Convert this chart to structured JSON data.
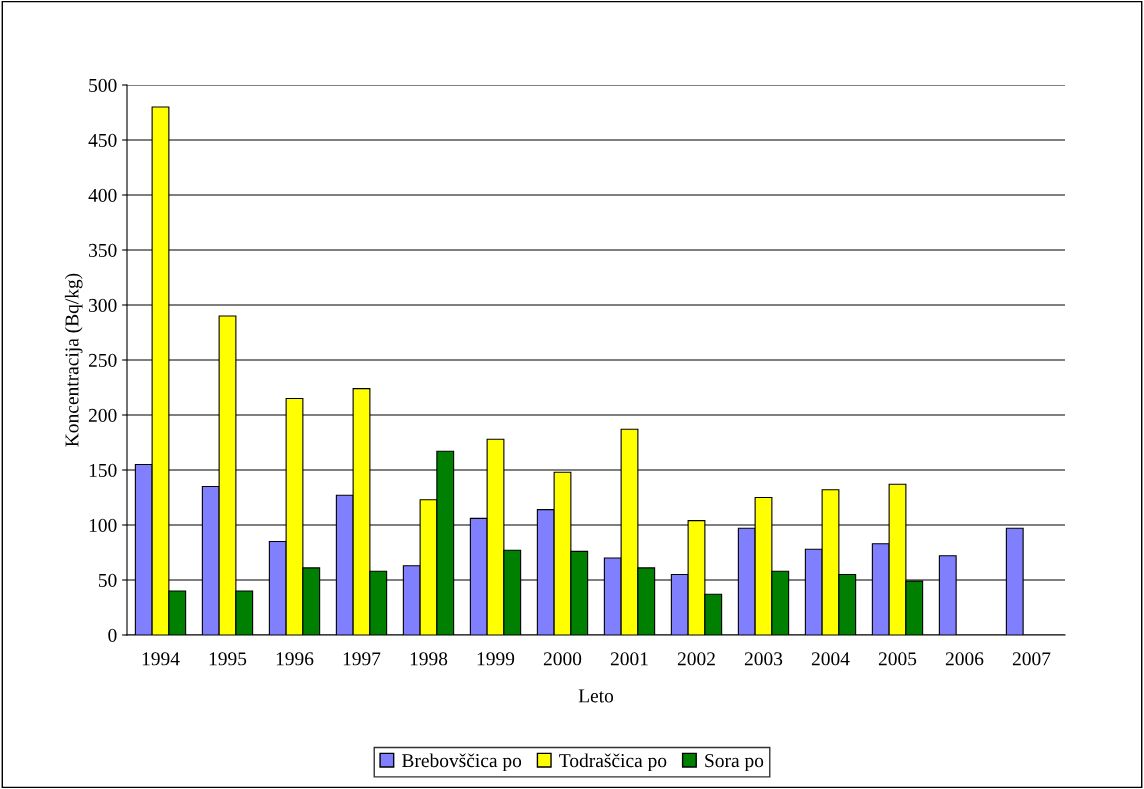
{
  "chart_data": {
    "type": "bar",
    "xlabel": "Leto",
    "ylabel": "Koncentracija (Bq/kg)",
    "categories": [
      "1994",
      "1995",
      "1996",
      "1997",
      "1998",
      "1999",
      "2000",
      "2001",
      "2002",
      "2003",
      "2004",
      "2005",
      "2006",
      "2007"
    ],
    "series": [
      {
        "name": "Brebovščica po",
        "color": "#8080ff",
        "values": [
          155,
          135,
          85,
          127,
          63,
          106,
          114,
          70,
          55,
          97,
          78,
          83,
          72,
          97
        ]
      },
      {
        "name": "Todraščica po",
        "color": "#ffff00",
        "values": [
          480,
          290,
          215,
          224,
          123,
          178,
          148,
          187,
          104,
          125,
          132,
          137,
          null,
          null
        ]
      },
      {
        "name": "Sora po",
        "color": "#008000",
        "values": [
          40,
          40,
          61,
          58,
          167,
          77,
          76,
          61,
          37,
          58,
          55,
          49,
          null,
          null
        ]
      }
    ],
    "ylim": [
      0,
      500
    ],
    "yticks": [
      0,
      50,
      100,
      150,
      200,
      250,
      300,
      350,
      400,
      450,
      500
    ],
    "grid": "y",
    "legend": "bottom"
  }
}
